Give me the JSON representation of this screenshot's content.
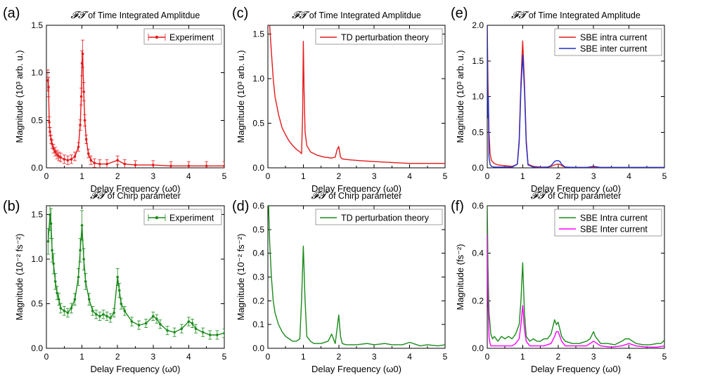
{
  "figure": {
    "x_axis_label": "Delay Frequency (ω0)",
    "colors": {
      "red": "#e41a1c",
      "green": "#1a8a1a",
      "blue": "#1f2fcc",
      "magenta": "#ff00ff"
    }
  },
  "chart_data": [
    {
      "id": "a",
      "panel_label": "(a)",
      "type": "line",
      "title": "FT of Time Integrated Amplitdue",
      "title_symbol": "𝓕𝓣",
      "title_rest": " of Time Integrated Amplitdue",
      "ylabel": "Magnitude (10³ arb. u.)",
      "xlabel": "Delay Frequency (ω0)",
      "xlim": [
        0,
        5
      ],
      "ylim": [
        0,
        1.5
      ],
      "xticks": [
        "0",
        "1",
        "2",
        "3",
        "4",
        "5"
      ],
      "yticks": [
        "0.0",
        "0.5",
        "1.0",
        "1.5"
      ],
      "yticks_values": [
        0,
        0.5,
        1.0,
        1.5
      ],
      "legend_position": "top-right",
      "error_bars": true,
      "markers": true,
      "series": [
        {
          "name": "Experiment",
          "color": "#e41a1c",
          "x": [
            0.04,
            0.06,
            0.08,
            0.1,
            0.13,
            0.16,
            0.2,
            0.25,
            0.3,
            0.35,
            0.4,
            0.5,
            0.6,
            0.7,
            0.8,
            0.9,
            0.95,
            0.98,
            1.0,
            1.02,
            1.05,
            1.08,
            1.12,
            1.18,
            1.25,
            1.35,
            1.5,
            1.7,
            2.0,
            2.2,
            2.5,
            3.0,
            3.5,
            4.0,
            4.5,
            5.0
          ],
          "y": [
            0.92,
            0.85,
            0.48,
            0.38,
            0.3,
            0.25,
            0.2,
            0.17,
            0.14,
            0.12,
            0.11,
            0.09,
            0.08,
            0.09,
            0.12,
            0.22,
            0.45,
            0.75,
            1.1,
            1.2,
            0.8,
            0.5,
            0.3,
            0.15,
            0.08,
            0.05,
            0.04,
            0.04,
            0.08,
            0.04,
            0.03,
            0.03,
            0.02,
            0.02,
            0.02,
            0.02
          ]
        }
      ]
    },
    {
      "id": "b",
      "panel_label": "(b)",
      "type": "line",
      "title": "FT of Chirp parameter",
      "title_symbol": "𝓕𝓣",
      "title_rest": " of Chirp parameter",
      "ylabel": "Magnitude (10⁻² fs⁻²)",
      "xlabel": "Delay Frequency (ω0)",
      "xlim": [
        0,
        5
      ],
      "ylim": [
        0,
        1.6
      ],
      "xticks": [
        "0",
        "1",
        "2",
        "3",
        "4",
        "5"
      ],
      "yticks": [
        "0.0",
        "0.5",
        "1.0",
        "1.5"
      ],
      "yticks_values": [
        0,
        0.5,
        1.0,
        1.5
      ],
      "legend_position": "top-right",
      "error_bars": true,
      "markers": true,
      "series": [
        {
          "name": "Experiment",
          "color": "#1a8a1a",
          "x": [
            0.05,
            0.1,
            0.13,
            0.16,
            0.2,
            0.25,
            0.3,
            0.35,
            0.4,
            0.5,
            0.6,
            0.7,
            0.8,
            0.9,
            0.95,
            1.0,
            1.05,
            1.1,
            1.2,
            1.3,
            1.4,
            1.5,
            1.6,
            1.7,
            1.8,
            1.9,
            2.0,
            2.05,
            2.1,
            2.2,
            2.4,
            2.6,
            2.8,
            3.0,
            3.1,
            3.2,
            3.4,
            3.6,
            3.8,
            4.0,
            4.1,
            4.2,
            4.4,
            4.6,
            4.8,
            5.0
          ],
          "y": [
            1.2,
            1.5,
            1.4,
            1.1,
            0.95,
            0.75,
            0.62,
            0.55,
            0.45,
            0.42,
            0.4,
            0.45,
            0.55,
            0.8,
            1.1,
            1.38,
            1.0,
            0.75,
            0.55,
            0.42,
            0.38,
            0.36,
            0.38,
            0.36,
            0.34,
            0.4,
            0.8,
            0.65,
            0.5,
            0.42,
            0.3,
            0.26,
            0.28,
            0.36,
            0.33,
            0.27,
            0.2,
            0.18,
            0.22,
            0.3,
            0.28,
            0.22,
            0.18,
            0.15,
            0.15,
            0.17
          ]
        }
      ]
    },
    {
      "id": "c",
      "panel_label": "(c)",
      "type": "line",
      "title": "FT of Time Integrated Amplitdue",
      "title_symbol": "𝓕𝓣",
      "title_rest": " of Time Integrated Amplitdue",
      "ylabel": "Magnitude (10³ arb. u.)",
      "xlabel": "Delay Frequency (ω0)",
      "xlim": [
        0,
        5
      ],
      "ylim": [
        0,
        1.6
      ],
      "xticks": [
        "0",
        "1",
        "2",
        "3",
        "4",
        "5"
      ],
      "yticks": [
        "0.0",
        "0.5",
        "1.0",
        "1.5"
      ],
      "yticks_values": [
        0,
        0.5,
        1.0,
        1.5
      ],
      "legend_position": "top-right",
      "error_bars": false,
      "markers": false,
      "series": [
        {
          "name": "TD perturbation theory",
          "color": "#e41a1c",
          "x": [
            0.05,
            0.1,
            0.15,
            0.2,
            0.3,
            0.4,
            0.5,
            0.6,
            0.7,
            0.8,
            0.9,
            0.95,
            0.98,
            1.0,
            1.02,
            1.05,
            1.1,
            1.2,
            1.4,
            1.6,
            1.8,
            1.9,
            1.95,
            2.0,
            2.05,
            2.1,
            2.3,
            2.6,
            3.0,
            3.5,
            4.0,
            4.5,
            5.0
          ],
          "y": [
            1.6,
            1.3,
            1.0,
            0.8,
            0.6,
            0.45,
            0.37,
            0.3,
            0.25,
            0.21,
            0.18,
            0.16,
            0.6,
            1.42,
            0.9,
            0.4,
            0.25,
            0.18,
            0.14,
            0.12,
            0.11,
            0.12,
            0.2,
            0.24,
            0.12,
            0.1,
            0.09,
            0.08,
            0.07,
            0.06,
            0.05,
            0.05,
            0.05
          ]
        }
      ]
    },
    {
      "id": "d",
      "panel_label": "(d)",
      "type": "line",
      "title": "FT of Chirp parameter",
      "title_symbol": "𝓕𝓣",
      "title_rest": " of Chirp parameter",
      "ylabel": "Magnitude (10⁻² fs⁻²)",
      "xlabel": "Delay Frequency (ω0)",
      "xlim": [
        0,
        5
      ],
      "ylim": [
        0,
        0.6
      ],
      "xticks": [
        "0",
        "1",
        "2",
        "3",
        "4",
        "5"
      ],
      "yticks": [
        "0.0",
        "0.1",
        "0.2",
        "0.3",
        "0.4",
        "0.5",
        "0.6"
      ],
      "yticks_values": [
        0,
        0.1,
        0.2,
        0.3,
        0.4,
        0.5,
        0.6
      ],
      "legend_position": "top-right",
      "error_bars": false,
      "markers": false,
      "series": [
        {
          "name": "TD perturbation theory",
          "color": "#1a8a1a",
          "x": [
            0.02,
            0.05,
            0.1,
            0.15,
            0.2,
            0.3,
            0.4,
            0.5,
            0.6,
            0.7,
            0.8,
            0.9,
            0.95,
            1.0,
            1.05,
            1.1,
            1.2,
            1.3,
            1.5,
            1.7,
            1.8,
            1.9,
            1.95,
            2.0,
            2.05,
            2.1,
            2.2,
            2.5,
            2.8,
            3.0,
            3.3,
            3.5,
            3.8,
            4.0,
            4.3,
            4.5,
            4.8,
            5.0
          ],
          "y": [
            0.6,
            0.45,
            0.3,
            0.2,
            0.15,
            0.1,
            0.07,
            0.05,
            0.04,
            0.03,
            0.03,
            0.04,
            0.2,
            0.43,
            0.2,
            0.05,
            0.03,
            0.02,
            0.02,
            0.03,
            0.06,
            0.02,
            0.08,
            0.14,
            0.05,
            0.02,
            0.015,
            0.015,
            0.02,
            0.015,
            0.02,
            0.015,
            0.015,
            0.025,
            0.01,
            0.015,
            0.01,
            0.015
          ]
        }
      ]
    },
    {
      "id": "e",
      "panel_label": "(e)",
      "type": "line",
      "title": "FT of Time Integrated Amplitude",
      "title_symbol": "𝓕𝓣",
      "title_rest": " of Time Integrated Amplitude",
      "ylabel": "Magnitude (10³ arb. u.)",
      "xlabel": "Delay Frequency (ω0)",
      "xlim": [
        0,
        5
      ],
      "ylim": [
        0,
        2.0
      ],
      "xticks": [
        "0",
        "1",
        "2",
        "3",
        "4",
        "5"
      ],
      "yticks": [
        "0.0",
        "0.5",
        "1.0",
        "1.5",
        "2.0"
      ],
      "yticks_values": [
        0,
        0.5,
        1.0,
        1.5,
        2.0
      ],
      "legend_position": "top-right",
      "error_bars": false,
      "markers": false,
      "series": [
        {
          "name": "SBE intra current",
          "color": "#e41a1c",
          "x": [
            0.0,
            0.02,
            0.05,
            0.08,
            0.12,
            0.2,
            0.3,
            0.5,
            0.7,
            0.85,
            0.9,
            0.95,
            1.0,
            1.05,
            1.1,
            1.15,
            1.3,
            1.5,
            1.7,
            1.8,
            1.9,
            1.95,
            2.0,
            2.05,
            2.1,
            2.2,
            2.5,
            2.8,
            3.0,
            3.2,
            3.5,
            4.0,
            4.5,
            5.0
          ],
          "y": [
            2.0,
            1.2,
            0.5,
            0.2,
            0.1,
            0.06,
            0.04,
            0.03,
            0.02,
            0.05,
            0.4,
            1.2,
            1.78,
            1.2,
            0.4,
            0.05,
            0.02,
            0.01,
            0.01,
            0.02,
            0.04,
            0.05,
            0.05,
            0.05,
            0.03,
            0.01,
            0.005,
            0.005,
            0.01,
            0.005,
            0.005,
            0.005,
            0.005,
            0.005
          ]
        },
        {
          "name": "SBE inter current",
          "color": "#1f2fcc",
          "x": [
            0.0,
            0.02,
            0.03,
            0.05,
            0.08,
            0.12,
            0.2,
            0.3,
            0.5,
            0.7,
            0.85,
            0.9,
            0.95,
            1.0,
            1.05,
            1.1,
            1.15,
            1.3,
            1.5,
            1.7,
            1.8,
            1.9,
            1.95,
            2.0,
            2.05,
            2.1,
            2.2,
            2.5,
            2.8,
            3.0,
            3.2,
            3.5,
            4.0,
            4.5,
            5.0
          ],
          "y": [
            2.0,
            0.7,
            1.0,
            0.15,
            0.05,
            0.02,
            0.01,
            0.01,
            0.01,
            0.01,
            0.05,
            0.35,
            1.1,
            1.58,
            1.1,
            0.35,
            0.04,
            0.01,
            0.005,
            0.01,
            0.03,
            0.09,
            0.1,
            0.1,
            0.09,
            0.05,
            0.01,
            0.005,
            0.005,
            0.02,
            0.005,
            0.005,
            0.005,
            0.005,
            0.005
          ]
        }
      ]
    },
    {
      "id": "f",
      "panel_label": "(f)",
      "type": "line",
      "title": "FT of Chirp parameter",
      "title_symbol": "𝓕𝓣",
      "title_rest": " of Chirp parameter",
      "ylabel": "Magnitude (fs⁻²)",
      "xlabel": "Delay Frequency (ω0)",
      "xlim": [
        0,
        5
      ],
      "ylim": [
        0,
        0.6
      ],
      "xticks": [
        "0",
        "1",
        "2",
        "3",
        "4",
        "5"
      ],
      "yticks": [
        "0.0",
        "0.2",
        "0.4",
        "0.6"
      ],
      "yticks_values": [
        0,
        0.2,
        0.4,
        0.6
      ],
      "legend_position": "top-right",
      "error_bars": false,
      "markers": false,
      "series": [
        {
          "name": "SBE Intra current",
          "color": "#1a8a1a",
          "x": [
            0.0,
            0.02,
            0.05,
            0.08,
            0.1,
            0.15,
            0.2,
            0.3,
            0.4,
            0.5,
            0.6,
            0.7,
            0.8,
            0.9,
            0.95,
            1.0,
            1.05,
            1.1,
            1.2,
            1.3,
            1.4,
            1.5,
            1.6,
            1.7,
            1.8,
            1.9,
            1.95,
            2.0,
            2.05,
            2.1,
            2.2,
            2.4,
            2.6,
            2.8,
            2.9,
            3.0,
            3.05,
            3.1,
            3.2,
            3.4,
            3.6,
            3.8,
            3.9,
            4.0,
            4.1,
            4.2,
            4.4,
            4.6,
            4.8,
            4.9,
            5.0
          ],
          "y": [
            0.6,
            0.35,
            0.15,
            0.1,
            0.06,
            0.04,
            0.05,
            0.03,
            0.05,
            0.04,
            0.05,
            0.04,
            0.06,
            0.1,
            0.2,
            0.36,
            0.15,
            0.05,
            0.03,
            0.04,
            0.03,
            0.03,
            0.04,
            0.04,
            0.06,
            0.12,
            0.1,
            0.11,
            0.08,
            0.05,
            0.03,
            0.02,
            0.02,
            0.03,
            0.04,
            0.07,
            0.05,
            0.04,
            0.02,
            0.02,
            0.015,
            0.03,
            0.04,
            0.04,
            0.03,
            0.02,
            0.015,
            0.015,
            0.02,
            0.02,
            0.035
          ]
        },
        {
          "name": "SBE Inter current",
          "color": "#ff00ff",
          "x": [
            0.0,
            0.02,
            0.05,
            0.08,
            0.1,
            0.2,
            0.3,
            0.5,
            0.7,
            0.8,
            0.9,
            0.95,
            1.0,
            1.05,
            1.1,
            1.2,
            1.4,
            1.6,
            1.8,
            1.9,
            1.95,
            2.0,
            2.05,
            2.1,
            2.2,
            2.5,
            2.8,
            2.9,
            3.0,
            3.1,
            3.2,
            3.5,
            3.8,
            4.0,
            4.2,
            4.5,
            4.8,
            5.0
          ],
          "y": [
            0.48,
            0.2,
            0.05,
            0.02,
            0.01,
            0.01,
            0.01,
            0.01,
            0.01,
            0.02,
            0.04,
            0.1,
            0.18,
            0.08,
            0.03,
            0.01,
            0.01,
            0.01,
            0.02,
            0.05,
            0.07,
            0.07,
            0.05,
            0.03,
            0.01,
            0.01,
            0.01,
            0.02,
            0.03,
            0.02,
            0.01,
            0.005,
            0.01,
            0.02,
            0.01,
            0.005,
            0.005,
            0.01
          ]
        }
      ]
    }
  ]
}
